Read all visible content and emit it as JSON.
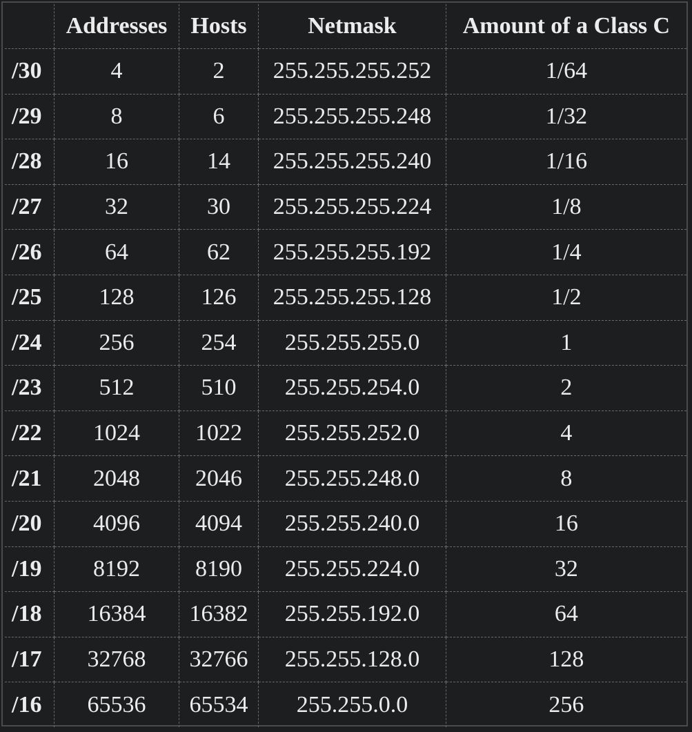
{
  "table": {
    "headers": [
      "",
      "Addresses",
      "Hosts",
      "Netmask",
      "Amount of a Class C"
    ],
    "rows": [
      {
        "prefix": "/30",
        "addresses": "4",
        "hosts": "2",
        "netmask": "255.255.255.252",
        "class_c": "1/64"
      },
      {
        "prefix": "/29",
        "addresses": "8",
        "hosts": "6",
        "netmask": "255.255.255.248",
        "class_c": "1/32"
      },
      {
        "prefix": "/28",
        "addresses": "16",
        "hosts": "14",
        "netmask": "255.255.255.240",
        "class_c": "1/16"
      },
      {
        "prefix": "/27",
        "addresses": "32",
        "hosts": "30",
        "netmask": "255.255.255.224",
        "class_c": "1/8"
      },
      {
        "prefix": "/26",
        "addresses": "64",
        "hosts": "62",
        "netmask": "255.255.255.192",
        "class_c": "1/4"
      },
      {
        "prefix": "/25",
        "addresses": "128",
        "hosts": "126",
        "netmask": "255.255.255.128",
        "class_c": "1/2"
      },
      {
        "prefix": "/24",
        "addresses": "256",
        "hosts": "254",
        "netmask": "255.255.255.0",
        "class_c": "1"
      },
      {
        "prefix": "/23",
        "addresses": "512",
        "hosts": "510",
        "netmask": "255.255.254.0",
        "class_c": "2"
      },
      {
        "prefix": "/22",
        "addresses": "1024",
        "hosts": "1022",
        "netmask": "255.255.252.0",
        "class_c": "4"
      },
      {
        "prefix": "/21",
        "addresses": "2048",
        "hosts": "2046",
        "netmask": "255.255.248.0",
        "class_c": "8"
      },
      {
        "prefix": "/20",
        "addresses": "4096",
        "hosts": "4094",
        "netmask": "255.255.240.0",
        "class_c": "16"
      },
      {
        "prefix": "/19",
        "addresses": "8192",
        "hosts": "8190",
        "netmask": "255.255.224.0",
        "class_c": "32"
      },
      {
        "prefix": "/18",
        "addresses": "16384",
        "hosts": "16382",
        "netmask": "255.255.192.0",
        "class_c": "64"
      },
      {
        "prefix": "/17",
        "addresses": "32768",
        "hosts": "32766",
        "netmask": "255.255.128.0",
        "class_c": "128"
      },
      {
        "prefix": "/16",
        "addresses": "65536",
        "hosts": "65534",
        "netmask": "255.255.0.0",
        "class_c": "256"
      }
    ]
  },
  "colors": {
    "background": "#1d1e20",
    "text": "#ececec",
    "grid": "#6a6b6f"
  }
}
